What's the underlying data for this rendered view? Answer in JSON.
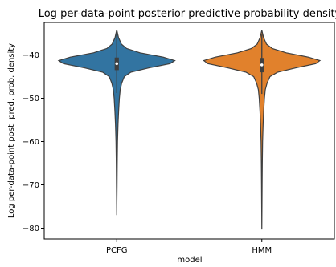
{
  "chart_data": {
    "type": "violin",
    "title": "Log per-data-point posterior predictive probability density",
    "xlabel": "model",
    "ylabel": "Log per-data-point post. pred. prob. density",
    "categories": [
      "PCFG",
      "HMM"
    ],
    "ylim": [
      -82.5,
      -32.5
    ],
    "yticks": [
      -80,
      -70,
      -60,
      -50,
      -40
    ],
    "ytick_labels": [
      "−80",
      "−70",
      "−60",
      "−50",
      "−40"
    ],
    "grid": false,
    "legend": "none",
    "series": [
      {
        "category": "PCFG",
        "color": "#3274a1",
        "min": -77.0,
        "max": -34.2,
        "q1": -43.5,
        "median": -42.0,
        "q3": -40.6,
        "whisker_low": -48.8,
        "whisker_high": -35.0,
        "density_profile": [
          [
            -34.2,
            0.0
          ],
          [
            -36.0,
            0.03
          ],
          [
            -37.5,
            0.08
          ],
          [
            -38.5,
            0.17
          ],
          [
            -39.5,
            0.4
          ],
          [
            -40.5,
            0.8
          ],
          [
            -41.3,
            1.0
          ],
          [
            -42.0,
            0.92
          ],
          [
            -43.0,
            0.55
          ],
          [
            -44.0,
            0.24
          ],
          [
            -45.0,
            0.13
          ],
          [
            -46.5,
            0.085
          ],
          [
            -48.0,
            0.06
          ],
          [
            -50.0,
            0.045
          ],
          [
            -53.0,
            0.032
          ],
          [
            -56.0,
            0.022
          ],
          [
            -60.0,
            0.013
          ],
          [
            -65.0,
            0.008
          ],
          [
            -70.0,
            0.005
          ],
          [
            -77.0,
            0.0
          ]
        ]
      },
      {
        "category": "HMM",
        "color": "#e1812c",
        "min": -80.3,
        "max": -34.3,
        "q1": -44.0,
        "median": -42.3,
        "q3": -40.7,
        "whisker_low": -49.0,
        "whisker_high": -35.3,
        "density_profile": [
          [
            -34.3,
            0.0
          ],
          [
            -36.0,
            0.03
          ],
          [
            -37.5,
            0.08
          ],
          [
            -38.5,
            0.18
          ],
          [
            -39.5,
            0.42
          ],
          [
            -40.5,
            0.8
          ],
          [
            -41.3,
            1.0
          ],
          [
            -42.0,
            0.93
          ],
          [
            -43.0,
            0.58
          ],
          [
            -44.0,
            0.27
          ],
          [
            -45.0,
            0.14
          ],
          [
            -46.5,
            0.09
          ],
          [
            -48.0,
            0.06
          ],
          [
            -50.0,
            0.045
          ],
          [
            -53.0,
            0.032
          ],
          [
            -56.0,
            0.022
          ],
          [
            -60.0,
            0.013
          ],
          [
            -65.0,
            0.008
          ],
          [
            -70.0,
            0.005
          ],
          [
            -80.3,
            0.0
          ]
        ]
      }
    ]
  }
}
